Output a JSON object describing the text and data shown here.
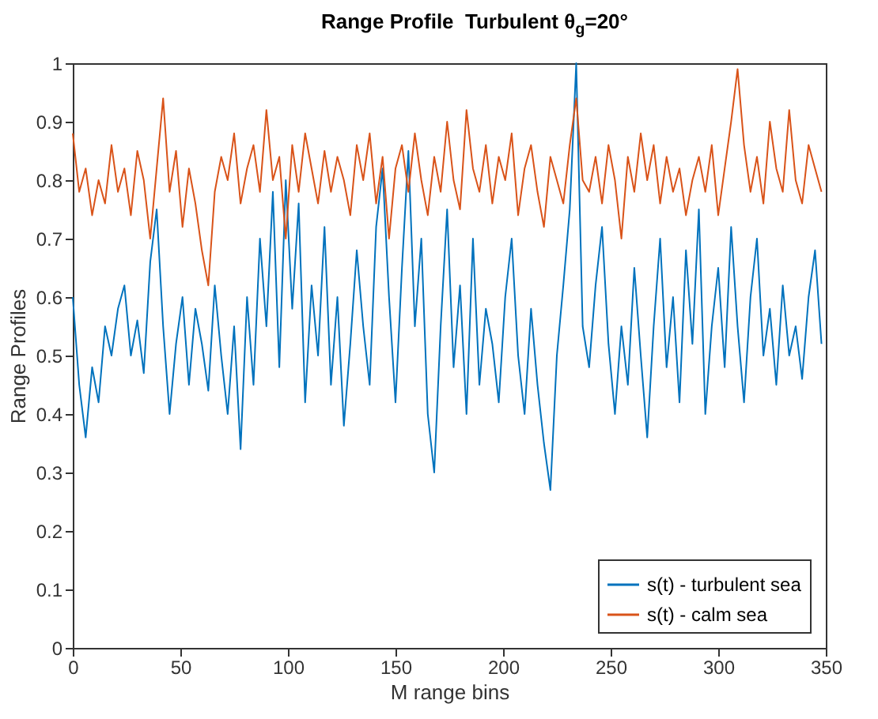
{
  "chart_data": {
    "type": "line",
    "title": "Range Profile  Turbulent θ$_{g}$=20°",
    "xlabel": "M range bins",
    "ylabel": "Range Profiles",
    "x": [
      0,
      3,
      6,
      9,
      12,
      15,
      18,
      21,
      24,
      27,
      30,
      33,
      36,
      39,
      42,
      45,
      48,
      51,
      54,
      57,
      60,
      63,
      66,
      69,
      72,
      75,
      78,
      81,
      84,
      87,
      90,
      93,
      96,
      99,
      102,
      105,
      108,
      111,
      114,
      117,
      120,
      123,
      126,
      129,
      132,
      135,
      138,
      141,
      144,
      147,
      150,
      153,
      156,
      159,
      162,
      165,
      168,
      171,
      174,
      177,
      180,
      183,
      186,
      189,
      192,
      195,
      198,
      201,
      204,
      207,
      210,
      213,
      216,
      219,
      222,
      225,
      228,
      231,
      234,
      237,
      240,
      243,
      246,
      249,
      252,
      255,
      258,
      261,
      264,
      267,
      270,
      273,
      276,
      279,
      282,
      285,
      288,
      291,
      294,
      297,
      300,
      303,
      306,
      309,
      312,
      315,
      318,
      321,
      324,
      327,
      330,
      333,
      336,
      339,
      342,
      345,
      348
    ],
    "series": [
      {
        "name": "s(t) - turbulent sea",
        "color": "#0072bd",
        "values": [
          0.6,
          0.45,
          0.36,
          0.48,
          0.42,
          0.55,
          0.5,
          0.58,
          0.62,
          0.5,
          0.56,
          0.47,
          0.66,
          0.75,
          0.55,
          0.4,
          0.52,
          0.6,
          0.45,
          0.58,
          0.52,
          0.44,
          0.62,
          0.5,
          0.4,
          0.55,
          0.34,
          0.6,
          0.45,
          0.7,
          0.55,
          0.78,
          0.48,
          0.8,
          0.58,
          0.76,
          0.42,
          0.62,
          0.5,
          0.72,
          0.45,
          0.6,
          0.38,
          0.52,
          0.68,
          0.55,
          0.45,
          0.72,
          0.82,
          0.6,
          0.42,
          0.65,
          0.85,
          0.55,
          0.7,
          0.4,
          0.3,
          0.55,
          0.75,
          0.48,
          0.62,
          0.4,
          0.7,
          0.45,
          0.58,
          0.52,
          0.42,
          0.6,
          0.7,
          0.5,
          0.4,
          0.58,
          0.45,
          0.35,
          0.27,
          0.5,
          0.62,
          0.75,
          1.0,
          0.55,
          0.48,
          0.62,
          0.72,
          0.52,
          0.4,
          0.55,
          0.45,
          0.65,
          0.5,
          0.36,
          0.55,
          0.7,
          0.48,
          0.6,
          0.42,
          0.68,
          0.52,
          0.75,
          0.4,
          0.55,
          0.65,
          0.48,
          0.72,
          0.55,
          0.42,
          0.6,
          0.7,
          0.5,
          0.58,
          0.45,
          0.62,
          0.5,
          0.55,
          0.46,
          0.6,
          0.68,
          0.52
        ]
      },
      {
        "name": "s(t) - calm sea",
        "color": "#d95319",
        "values": [
          0.88,
          0.78,
          0.82,
          0.74,
          0.8,
          0.76,
          0.86,
          0.78,
          0.82,
          0.74,
          0.85,
          0.8,
          0.7,
          0.82,
          0.94,
          0.78,
          0.85,
          0.72,
          0.82,
          0.76,
          0.68,
          0.62,
          0.78,
          0.84,
          0.8,
          0.88,
          0.76,
          0.82,
          0.86,
          0.78,
          0.92,
          0.8,
          0.84,
          0.7,
          0.86,
          0.78,
          0.88,
          0.82,
          0.76,
          0.85,
          0.78,
          0.84,
          0.8,
          0.74,
          0.86,
          0.8,
          0.88,
          0.76,
          0.84,
          0.7,
          0.82,
          0.86,
          0.78,
          0.88,
          0.8,
          0.74,
          0.84,
          0.78,
          0.9,
          0.8,
          0.75,
          0.92,
          0.82,
          0.78,
          0.86,
          0.76,
          0.84,
          0.8,
          0.88,
          0.74,
          0.82,
          0.86,
          0.78,
          0.72,
          0.84,
          0.8,
          0.76,
          0.86,
          0.94,
          0.8,
          0.78,
          0.84,
          0.76,
          0.86,
          0.8,
          0.7,
          0.84,
          0.78,
          0.88,
          0.8,
          0.86,
          0.76,
          0.84,
          0.78,
          0.82,
          0.74,
          0.8,
          0.84,
          0.78,
          0.86,
          0.74,
          0.82,
          0.9,
          0.99,
          0.86,
          0.78,
          0.84,
          0.76,
          0.9,
          0.82,
          0.78,
          0.92,
          0.8,
          0.76,
          0.86,
          0.82,
          0.78
        ]
      }
    ],
    "xlim": [
      0,
      350
    ],
    "xticks": [
      0,
      50,
      100,
      150,
      200,
      250,
      300,
      350
    ],
    "ylim": [
      0,
      1
    ],
    "yticks": [
      0,
      0.1,
      0.2,
      0.3,
      0.4,
      0.5,
      0.6,
      0.7,
      0.8,
      0.9,
      1
    ],
    "legend": "bottom right",
    "line_style": "solid"
  }
}
